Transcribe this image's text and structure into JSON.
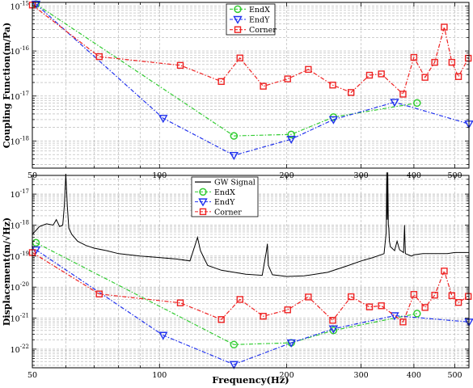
{
  "figure": {
    "xlabel": "Frequency(Hz)"
  },
  "chart_data": [
    {
      "type": "line",
      "panel": "top",
      "title": "",
      "xlabel": "",
      "ylabel": "Coupling Function(m/Pa)",
      "xscale": "log",
      "yscale": "log",
      "xlim": [
        50,
        540
      ],
      "ylim": [
        2.5e-19,
        1.2e-15
      ],
      "xticks": [
        50,
        100,
        200,
        300,
        400,
        500
      ],
      "xtick_labels": [
        "50",
        "100",
        "200",
        "300",
        "400",
        "500"
      ],
      "yticks": [
        1e-18,
        1e-17,
        1e-16,
        1e-15
      ],
      "ytick_labels": [
        {
          "base": "10",
          "exp": "-18"
        },
        {
          "base": "10",
          "exp": "-17"
        },
        {
          "base": "10",
          "exp": "-16"
        },
        {
          "base": "10",
          "exp": "-15"
        }
      ],
      "grid": true,
      "legend_position": "top-center",
      "series": [
        {
          "name": "EndX",
          "color": "#33cc33",
          "marker": "circle",
          "x": [
            51,
            150,
            205,
            258,
            407
          ],
          "y": [
            1.1e-15,
            1.3e-18,
            1.4e-18,
            3.4e-18,
            7e-18
          ]
        },
        {
          "name": "EndY",
          "color": "#2233ee",
          "marker": "triangle-down",
          "x": [
            51,
            102,
            150,
            205,
            258,
            360,
            540
          ],
          "y": [
            1.1e-15,
            3.2e-18,
            4.8e-19,
            1.1e-18,
            3e-18,
            7.3e-18,
            2.4e-18
          ]
        },
        {
          "name": "Corner",
          "color": "#ee2222",
          "marker": "square",
          "x": [
            50,
            72,
            112,
            140,
            155,
            176,
            201,
            225,
            257,
            284,
            314,
            335,
            377,
            400,
            425,
            448,
            472,
            492,
            510,
            538
          ],
          "y": [
            1.05e-15,
            7.5e-17,
            4.8e-17,
            2.1e-17,
            7e-17,
            1.65e-17,
            2.4e-17,
            3.9e-17,
            1.75e-17,
            1.2e-17,
            2.9e-17,
            3.1e-17,
            1.1e-17,
            7.2e-17,
            2.6e-17,
            5.6e-17,
            3.4e-16,
            5.6e-17,
            2.7e-17,
            6.9e-17
          ]
        }
      ]
    },
    {
      "type": "line",
      "panel": "bottom",
      "title": "",
      "xlabel": "Frequency(Hz)",
      "ylabel": "Displacement(m/√Hz)",
      "xscale": "log",
      "yscale": "log",
      "xlim": [
        50,
        540
      ],
      "ylim": [
        2.5e-23,
        4e-17
      ],
      "xticks": [
        50,
        100,
        200,
        300,
        400,
        500
      ],
      "xtick_labels": [
        "50",
        "100",
        "200",
        "300",
        "400",
        "500"
      ],
      "yticks": [
        1e-22,
        1e-21,
        1e-20,
        1e-19,
        1e-18,
        1e-17
      ],
      "ytick_labels": [
        {
          "base": "10",
          "exp": "-22"
        },
        {
          "base": "10",
          "exp": "-21"
        },
        {
          "base": "10",
          "exp": "-20"
        },
        {
          "base": "10",
          "exp": "-19"
        },
        {
          "base": "10",
          "exp": "-18"
        },
        {
          "base": "10",
          "exp": "-17"
        }
      ],
      "grid": true,
      "legend_position": "top-center",
      "series": [
        {
          "name": "GW Signal",
          "color": "#000000",
          "marker": "none",
          "x": [
            50,
            52,
            54,
            56,
            57,
            58,
            59,
            59.5,
            60,
            60.5,
            61,
            62,
            64,
            67,
            70,
            75,
            80,
            90,
            100,
            110,
            118,
            121,
            123,
            125,
            130,
            140,
            160,
            175,
            179,
            180,
            181,
            185,
            200,
            220,
            250,
            280,
            300,
            320,
            340,
            344,
            345,
            346,
            347,
            348,
            349,
            350,
            352,
            355,
            360,
            365,
            370,
            378,
            379,
            380,
            381,
            382,
            395,
            400,
            420,
            450,
            480,
            500,
            520,
            540
          ],
          "y": [
            5e-19,
            9e-19,
            1.1e-18,
            1e-18,
            1.5e-18,
            9e-19,
            1e-18,
            4e-18,
            4.5e-17,
            4e-18,
            8e-19,
            5e-19,
            3e-19,
            2.2e-19,
            1.8e-19,
            1.5e-19,
            1.2e-19,
            1e-19,
            9e-20,
            8e-20,
            7e-20,
            2e-19,
            4e-19,
            1.5e-19,
            5e-20,
            3.5e-20,
            2.6e-20,
            2.4e-20,
            1.4e-19,
            2.5e-19,
            5e-20,
            2.5e-20,
            2.2e-20,
            2.3e-20,
            3e-20,
            5e-20,
            7e-20,
            9e-20,
            1.2e-19,
            6e-19,
            5e-17,
            1.5e-18,
            5e-17,
            1e-18,
            8e-19,
            3e-19,
            2e-19,
            1.8e-19,
            1.5e-19,
            3e-19,
            1.6e-19,
            1.3e-19,
            3e-19,
            1e-18,
            3e-19,
            1.2e-19,
            1e-19,
            1.1e-19,
            1.2e-19,
            1.2e-19,
            1.2e-19,
            1.3e-19,
            1.3e-19,
            1.3e-19
          ]
        },
        {
          "name": "EndX",
          "color": "#33cc33",
          "marker": "circle",
          "x": [
            51,
            150,
            205,
            258,
            407
          ],
          "y": [
            2.7e-19,
            1.4e-22,
            1.6e-22,
            4e-22,
            1.4e-21
          ]
        },
        {
          "name": "EndY",
          "color": "#2233ee",
          "marker": "triangle-down",
          "x": [
            51,
            102,
            150,
            205,
            258,
            360,
            540
          ],
          "y": [
            1.6e-19,
            2.8e-22,
            3.2e-23,
            1.6e-22,
            4.5e-22,
            1.2e-21,
            7.5e-22
          ]
        },
        {
          "name": "Corner",
          "color": "#ee2222",
          "marker": "square",
          "x": [
            50,
            72,
            112,
            140,
            155,
            176,
            201,
            225,
            257,
            284,
            314,
            335,
            377,
            400,
            425,
            448,
            472,
            492,
            510,
            538
          ],
          "y": [
            1.3e-19,
            6e-21,
            3.1e-21,
            9e-22,
            4e-21,
            1.15e-21,
            1.85e-21,
            4.8e-21,
            8.5e-22,
            4.9e-21,
            2.3e-21,
            2.5e-21,
            7.5e-22,
            5.8e-21,
            2.2e-21,
            5.5e-21,
            3.3e-20,
            5.3e-21,
            3.2e-21,
            5e-21
          ]
        }
      ]
    }
  ]
}
